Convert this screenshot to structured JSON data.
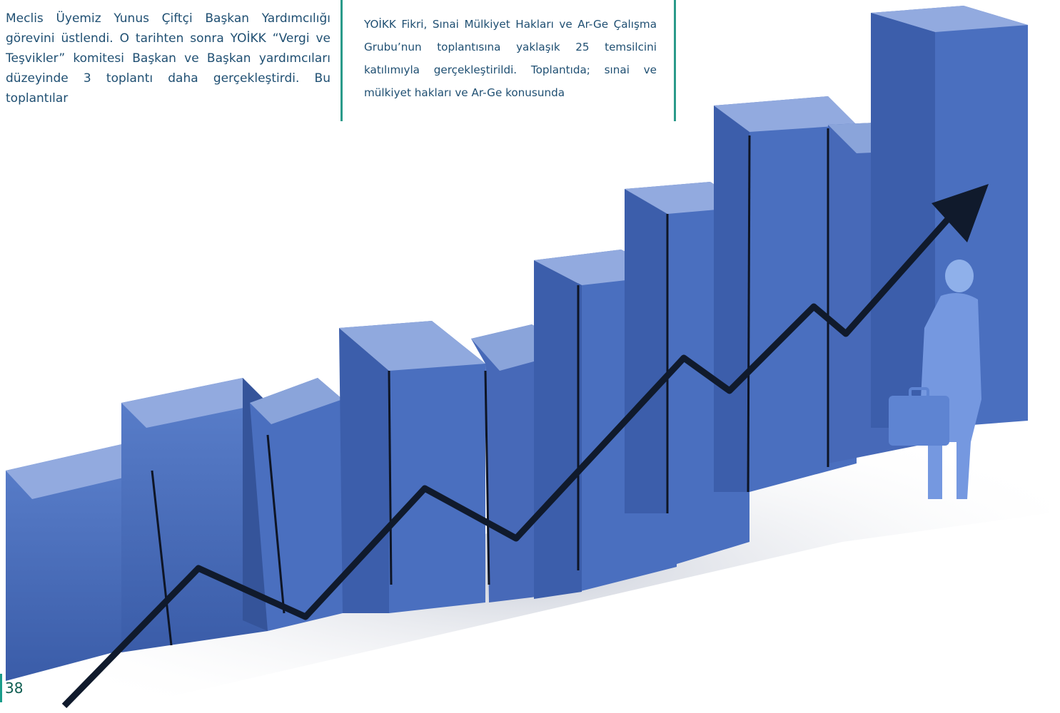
{
  "left_column": {
    "text": "Meclis Üyemiz Yunus Çiftçi Başkan Yardımcılığı görevini üstlendi. O tarihten sonra YOİKK “Vergi ve Teşvikler” komitesi Başkan ve Başkan yardımcıları düzeyinde 3 toplantı daha gerçekleştirdi. Bu toplantılar"
  },
  "right_column": {
    "text": "YOİKK Fikri, Sınai Mülkiyet Hakları ve Ar-Ge Çalışma Grubu’nun toplantısına yaklaşık 25 temsilcini katılımıyla gerçekleştirildi. Toplantıda; sınai ve mülkiyet hakları ve Ar-Ge konusunda"
  },
  "illustration": {
    "bar_count": 11,
    "bar_color_front": "#4a6fbf",
    "bar_color_top": "#8fa9dd",
    "bar_color_side": "#35549a",
    "arrow_color": "#101a2c",
    "figure_color": "#6b8fd6"
  },
  "page_number": "38",
  "colors": {
    "text": "#1f4f72",
    "rule": "#2a9a8a"
  }
}
